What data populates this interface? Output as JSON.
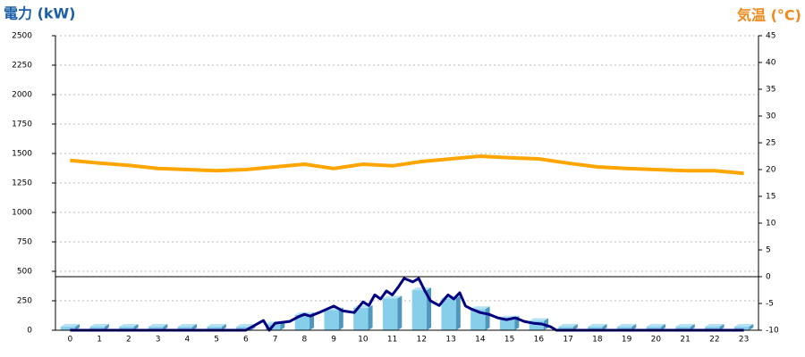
{
  "chart_data": {
    "type": "bar",
    "y_title": "電力 (kW)",
    "y2_title": "気温 (°C)",
    "categories": [
      "0",
      "1",
      "2",
      "3",
      "4",
      "5",
      "6",
      "7",
      "8",
      "9",
      "10",
      "11",
      "12",
      "13",
      "14",
      "15",
      "16",
      "17",
      "18",
      "19",
      "20",
      "21",
      "22",
      "23"
    ],
    "ylim": [
      0,
      2500
    ],
    "yticks": [
      0,
      250,
      500,
      750,
      1000,
      1250,
      1500,
      1750,
      2000,
      2250,
      2500
    ],
    "y2lim": [
      -10,
      45
    ],
    "y2ticks": [
      -10,
      -5,
      0,
      5,
      10,
      15,
      20,
      25,
      30,
      35,
      40,
      45
    ],
    "grid": true,
    "series": [
      {
        "type": "bar",
        "color": "#87ceeb",
        "values": [
          30,
          30,
          30,
          30,
          30,
          30,
          30,
          50,
          130,
          170,
          190,
          270,
          340,
          270,
          180,
          100,
          80,
          30,
          30,
          30,
          30,
          30,
          30,
          30
        ]
      },
      {
        "type": "line",
        "axis": "y2",
        "color": "#ffa500",
        "values": [
          21.7,
          21.2,
          20.8,
          20.2,
          20,
          19.8,
          20,
          20.5,
          21,
          20.2,
          21,
          20.7,
          21.5,
          22,
          22.5,
          22.2,
          22,
          21.2,
          20.5,
          20.2,
          20,
          19.8,
          19.8,
          19.3
        ]
      },
      {
        "type": "line",
        "color": "#000080",
        "x": [
          0,
          6,
          6.6,
          6.8,
          7,
          7.5,
          7.8,
          8,
          8.2,
          8.5,
          9,
          9.3,
          9.7,
          10,
          10.2,
          10.4,
          10.6,
          10.8,
          11,
          11.2,
          11.4,
          11.7,
          11.9,
          12.1,
          12.3,
          12.6,
          12.9,
          13.1,
          13.3,
          13.5,
          13.7,
          14,
          14.3,
          14.6,
          14.9,
          15.2,
          15.5,
          15.8,
          16.1,
          16.4,
          16.6,
          23
        ],
        "values": [
          0,
          0,
          83,
          0,
          60,
          75,
          115,
          135,
          120,
          150,
          205,
          165,
          150,
          240,
          210,
          300,
          265,
          333,
          300,
          365,
          440,
          410,
          440,
          340,
          250,
          210,
          300,
          265,
          318,
          205,
          180,
          150,
          135,
          105,
          90,
          105,
          75,
          60,
          53,
          30,
          0,
          0
        ]
      }
    ]
  }
}
